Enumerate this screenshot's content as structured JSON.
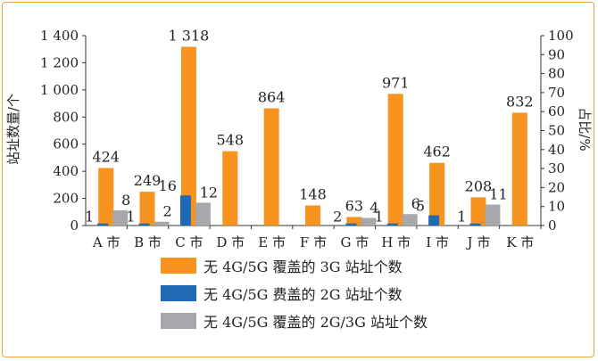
{
  "chart_data": {
    "type": "bar",
    "categories": [
      "A 市",
      "B 市",
      "C 市",
      "D 市",
      "E 市",
      "F 市",
      "G 市",
      "H 市",
      "I 市",
      "J 市",
      "K 市"
    ],
    "series": [
      {
        "name": "无 4G/5G 覆盖的 3G 站址个数",
        "axis": "left",
        "color": "#f7931e",
        "values": [
          424,
          249,
          1318,
          548,
          864,
          148,
          63,
          971,
          462,
          208,
          832
        ],
        "labels": [
          "424",
          "249",
          "1 318",
          "548",
          "864",
          "148",
          "63",
          "971",
          "462",
          "208",
          "832"
        ]
      },
      {
        "name": "无 4G/5G 费盖的 2G 站址个数",
        "axis": "left",
        "color": "#1f6ab3",
        "values": [
          1,
          1,
          16,
          null,
          null,
          null,
          2,
          1,
          5,
          1,
          null
        ],
        "display_values": [
          15,
          15,
          222,
          null,
          null,
          null,
          15,
          15,
          75,
          15,
          null
        ],
        "labels": [
          "1",
          "1",
          "16",
          "",
          "",
          "",
          "2",
          "1",
          "5",
          "1",
          ""
        ]
      },
      {
        "name": "无 4G/5G 覆盖的 2G/3G 站址个数",
        "axis": "right",
        "color": "#a6a8ab",
        "values": [
          8,
          2,
          12,
          null,
          null,
          null,
          4,
          6,
          null,
          11,
          null
        ],
        "labels": [
          "8",
          "2",
          "12",
          "",
          "",
          "",
          "4",
          "6",
          "",
          "11",
          ""
        ]
      }
    ],
    "y_left": {
      "label": "站址数量/个",
      "range": [
        0,
        1400
      ],
      "ticks": [
        0,
        200,
        400,
        600,
        800,
        1000,
        1200,
        1400
      ],
      "tick_labels": [
        "0",
        "200",
        "400",
        "600",
        "800",
        "1 000",
        "1 200",
        "1 400"
      ]
    },
    "y_right": {
      "label": "占比/%",
      "range": [
        0,
        100
      ],
      "ticks": [
        0,
        10,
        20,
        30,
        40,
        50,
        60,
        70,
        80,
        90,
        100
      ],
      "tick_labels": [
        "0",
        "10",
        "20",
        "30",
        "40",
        "50",
        "60",
        "70",
        "80",
        "90",
        "100"
      ]
    },
    "grid": false,
    "legend_position": "bottom"
  }
}
